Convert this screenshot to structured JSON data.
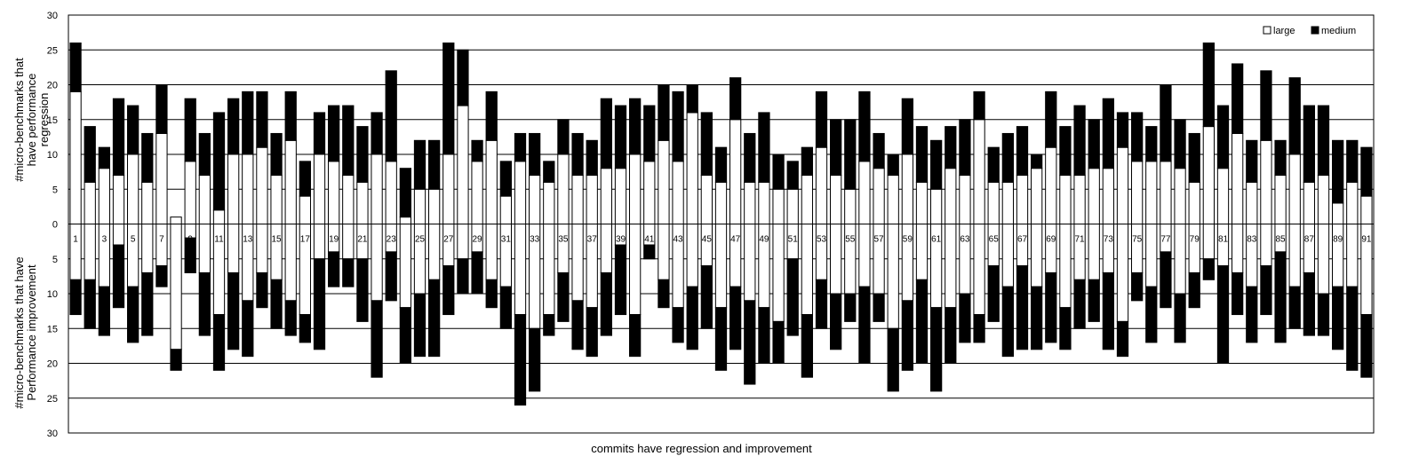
{
  "chart_data": {
    "type": "bar",
    "xlabel": "commits have regression and improvement",
    "ylabel_top": "#micro-benchmarks that have performance regression",
    "ylabel_bottom": "#micro-benchmarks that have Performance improvement",
    "ylim": [
      -30,
      30
    ],
    "yticks": [
      30,
      25,
      20,
      15,
      10,
      5,
      0,
      5,
      10,
      15,
      20,
      25,
      30
    ],
    "grid": true,
    "legend_position": "top-right",
    "categories": [
      1,
      2,
      3,
      4,
      5,
      6,
      7,
      8,
      9,
      10,
      11,
      12,
      13,
      14,
      15,
      16,
      17,
      18,
      19,
      20,
      21,
      22,
      23,
      24,
      25,
      26,
      27,
      28,
      29,
      30,
      31,
      32,
      33,
      34,
      35,
      36,
      37,
      38,
      39,
      40,
      41,
      42,
      43,
      44,
      45,
      46,
      47,
      48,
      49,
      50,
      51,
      52,
      53,
      54,
      55,
      56,
      57,
      58,
      59,
      60,
      61,
      62,
      63,
      64,
      65,
      66,
      67,
      68,
      69,
      70,
      71,
      72,
      73,
      74,
      75,
      76,
      77,
      78,
      79,
      80,
      81,
      82,
      83,
      84,
      85,
      86,
      87,
      88,
      89,
      90,
      91
    ],
    "category_labels_shown": [
      "1",
      "3",
      "5",
      "7",
      "9",
      "11",
      "13",
      "15",
      "17",
      "19",
      "21",
      "23",
      "25",
      "27",
      "29",
      "31",
      "33",
      "35",
      "37",
      "39",
      "41",
      "43",
      "45",
      "47",
      "49",
      "51",
      "53",
      "55",
      "57",
      "59",
      "61",
      "63",
      "65",
      "67",
      "69",
      "71",
      "73",
      "75",
      "77",
      "79",
      "81",
      "83",
      "85",
      "87",
      "89",
      "91"
    ],
    "series": [
      {
        "name": "large",
        "color": "#ffffff",
        "regression": [
          19,
          6,
          8,
          7,
          10,
          6,
          13,
          1,
          9,
          7,
          2,
          10,
          10,
          11,
          7,
          12,
          4,
          10,
          9,
          7,
          6,
          10,
          9,
          1,
          5,
          5,
          10,
          17,
          9,
          12,
          4,
          9,
          7,
          6,
          10,
          7,
          7,
          8,
          8,
          10,
          9,
          12,
          9,
          16,
          7,
          6,
          15,
          6,
          6,
          5,
          5,
          7,
          11,
          7,
          5,
          9,
          8,
          7,
          10,
          6,
          5,
          8,
          7,
          15,
          6,
          6,
          7,
          8,
          11,
          7,
          7,
          8,
          8,
          11,
          9,
          9,
          9,
          8,
          6,
          14,
          8,
          13,
          6,
          12,
          7,
          10,
          6,
          7,
          3,
          6,
          4
        ],
        "improvement": [
          8,
          8,
          9,
          3,
          9,
          7,
          6,
          18,
          2,
          7,
          13,
          7,
          11,
          7,
          8,
          11,
          13,
          5,
          4,
          5,
          5,
          11,
          4,
          12,
          10,
          8,
          6,
          5,
          4,
          8,
          9,
          13,
          15,
          13,
          7,
          11,
          12,
          7,
          3,
          13,
          3,
          8,
          12,
          9,
          6,
          12,
          9,
          11,
          12,
          14,
          5,
          13,
          8,
          10,
          10,
          9,
          10,
          15,
          11,
          8,
          12,
          12,
          10,
          13,
          6,
          9,
          6,
          9,
          7,
          12,
          8,
          8,
          7,
          14,
          7,
          9,
          4,
          10,
          7,
          5,
          6,
          7,
          9,
          6,
          4,
          9,
          7,
          10,
          9,
          9,
          13
        ]
      },
      {
        "name": "medium",
        "color": "#000000",
        "regression": [
          7,
          8,
          3,
          11,
          7,
          7,
          7,
          0,
          9,
          6,
          14,
          8,
          9,
          8,
          6,
          7,
          5,
          6,
          8,
          10,
          8,
          6,
          13,
          7,
          7,
          7,
          16,
          8,
          3,
          7,
          5,
          4,
          6,
          3,
          5,
          6,
          5,
          10,
          9,
          8,
          8,
          8,
          10,
          4,
          9,
          5,
          6,
          7,
          10,
          5,
          4,
          4,
          8,
          8,
          10,
          10,
          5,
          3,
          8,
          8,
          7,
          6,
          8,
          4,
          5,
          7,
          7,
          2,
          8,
          7,
          10,
          7,
          10,
          5,
          7,
          5,
          11,
          7,
          7,
          12,
          9,
          10,
          6,
          10,
          5,
          11,
          11,
          10,
          9,
          6,
          7
        ],
        "improvement": [
          5,
          7,
          7,
          9,
          8,
          9,
          3,
          3,
          5,
          9,
          8,
          11,
          8,
          5,
          7,
          5,
          4,
          13,
          5,
          4,
          9,
          11,
          7,
          8,
          9,
          11,
          7,
          5,
          6,
          4,
          6,
          13,
          9,
          3,
          7,
          7,
          7,
          9,
          10,
          6,
          2,
          4,
          5,
          9,
          9,
          9,
          9,
          12,
          8,
          6,
          11,
          9,
          7,
          8,
          4,
          11,
          4,
          9,
          10,
          12,
          12,
          8,
          7,
          4,
          8,
          10,
          12,
          9,
          10,
          6,
          7,
          6,
          11,
          5,
          4,
          8,
          8,
          7,
          5,
          3,
          14,
          6,
          8,
          7,
          13,
          6,
          9,
          6,
          9,
          12,
          9
        ]
      }
    ]
  }
}
